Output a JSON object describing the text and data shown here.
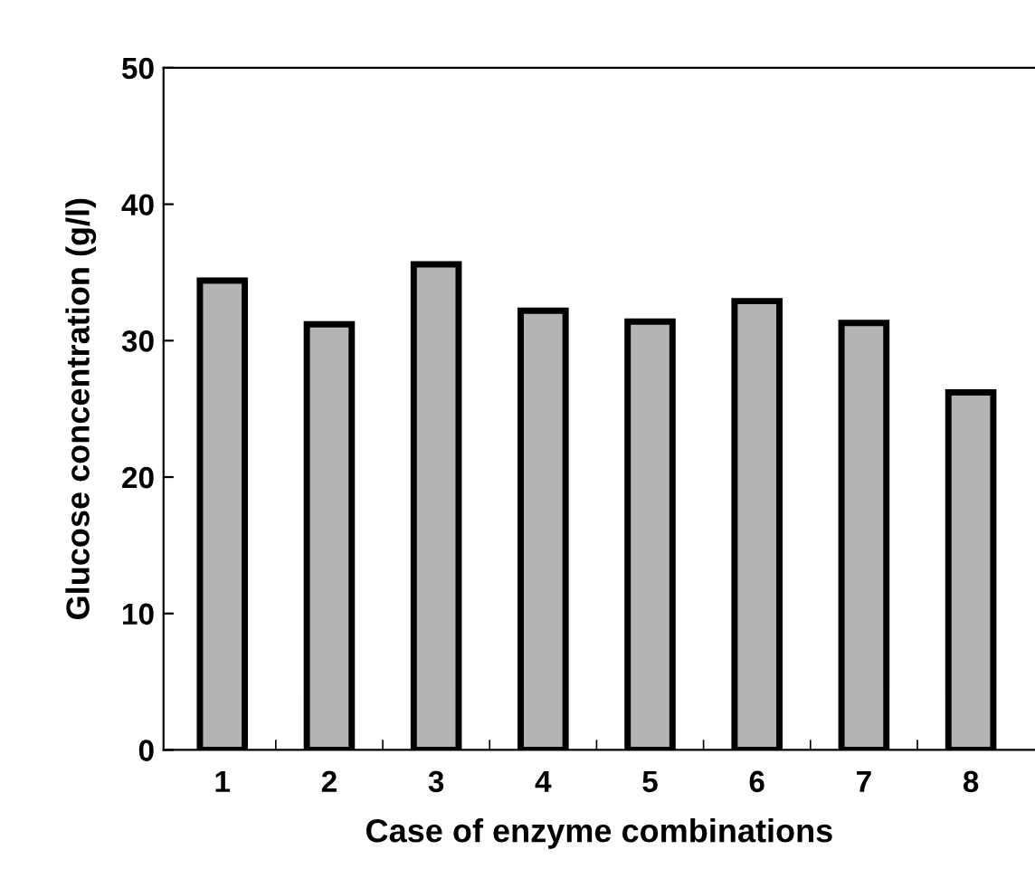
{
  "chart_data": {
    "type": "bar",
    "xlabel": "Case of enzyme combinations",
    "ylabel": "Glucose concentration (g/l)",
    "categories": [
      "1",
      "2",
      "3",
      "4",
      "5",
      "6",
      "7",
      "8"
    ],
    "series": [
      {
        "color": "#b4b4b4",
        "values": [
          34.4,
          31.2,
          35.6,
          32.2,
          31.4,
          32.9,
          31.3,
          26.2
        ]
      }
    ],
    "ylim": [
      0,
      50
    ],
    "yticks": [
      0,
      10,
      20,
      30,
      40,
      50
    ],
    "grid": false,
    "legend": false
  }
}
